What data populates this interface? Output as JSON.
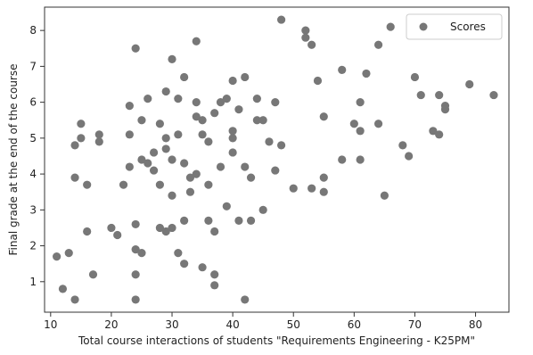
{
  "chart_data": {
    "type": "scatter",
    "xlabel": "Total course interactions of students \"Requirements Engineering - K25PM\"",
    "ylabel": "Final grade at the end of the course",
    "xlim": [
      9,
      85.5
    ],
    "ylim": [
      0.15,
      8.65
    ],
    "xticks": [
      10,
      20,
      30,
      40,
      50,
      60,
      70,
      80
    ],
    "yticks": [
      1,
      2,
      3,
      4,
      5,
      6,
      7,
      8
    ],
    "grid": false,
    "legend": "top-right",
    "series": [
      {
        "name": "Scores",
        "color": "#777777",
        "points": [
          [
            11,
            1.7
          ],
          [
            12,
            0.8
          ],
          [
            13,
            1.8
          ],
          [
            14,
            0.5
          ],
          [
            14,
            4.8
          ],
          [
            14,
            3.9
          ],
          [
            15,
            5.4
          ],
          [
            15,
            5.0
          ],
          [
            16,
            2.4
          ],
          [
            16,
            3.7
          ],
          [
            17,
            1.2
          ],
          [
            18,
            5.1
          ],
          [
            18,
            4.9
          ],
          [
            20,
            2.5
          ],
          [
            21,
            2.3
          ],
          [
            22,
            3.7
          ],
          [
            23,
            5.9
          ],
          [
            23,
            5.1
          ],
          [
            23,
            4.2
          ],
          [
            24,
            7.5
          ],
          [
            24,
            1.9
          ],
          [
            24,
            1.2
          ],
          [
            24,
            0.5
          ],
          [
            24,
            2.6
          ],
          [
            25,
            1.8
          ],
          [
            25,
            4.4
          ],
          [
            25,
            5.5
          ],
          [
            26,
            6.1
          ],
          [
            26,
            4.3
          ],
          [
            27,
            4.6
          ],
          [
            27,
            4.1
          ],
          [
            28,
            2.5
          ],
          [
            28,
            3.7
          ],
          [
            28,
            5.4
          ],
          [
            29,
            4.7
          ],
          [
            29,
            6.3
          ],
          [
            29,
            2.4
          ],
          [
            29,
            5.0
          ],
          [
            30,
            7.2
          ],
          [
            30,
            3.4
          ],
          [
            30,
            4.4
          ],
          [
            30,
            2.5
          ],
          [
            31,
            1.8
          ],
          [
            31,
            5.1
          ],
          [
            31,
            6.1
          ],
          [
            32,
            1.5
          ],
          [
            32,
            4.3
          ],
          [
            32,
            6.7
          ],
          [
            32,
            2.7
          ],
          [
            33,
            3.5
          ],
          [
            33,
            3.9
          ],
          [
            34,
            5.6
          ],
          [
            34,
            6.0
          ],
          [
            34,
            7.7
          ],
          [
            34,
            4.0
          ],
          [
            35,
            1.4
          ],
          [
            35,
            5.5
          ],
          [
            35,
            5.1
          ],
          [
            36,
            4.9
          ],
          [
            36,
            3.7
          ],
          [
            36,
            2.7
          ],
          [
            37,
            1.2
          ],
          [
            37,
            0.9
          ],
          [
            37,
            5.7
          ],
          [
            37,
            2.4
          ],
          [
            38,
            4.2
          ],
          [
            38,
            6.0
          ],
          [
            39,
            6.1
          ],
          [
            39,
            3.1
          ],
          [
            40,
            5.2
          ],
          [
            40,
            5.0
          ],
          [
            40,
            4.6
          ],
          [
            40,
            6.6
          ],
          [
            41,
            2.7
          ],
          [
            41,
            5.8
          ],
          [
            42,
            0.5
          ],
          [
            42,
            6.7
          ],
          [
            42,
            4.2
          ],
          [
            43,
            2.7
          ],
          [
            43,
            3.9
          ],
          [
            44,
            6.1
          ],
          [
            44,
            5.5
          ],
          [
            45,
            3.0
          ],
          [
            45,
            5.5
          ],
          [
            46,
            4.9
          ],
          [
            47,
            4.1
          ],
          [
            47,
            6.0
          ],
          [
            48,
            8.3
          ],
          [
            48,
            4.8
          ],
          [
            50,
            3.6
          ],
          [
            52,
            8.0
          ],
          [
            52,
            7.8
          ],
          [
            53,
            7.6
          ],
          [
            53,
            3.6
          ],
          [
            54,
            6.6
          ],
          [
            55,
            5.6
          ],
          [
            55,
            3.9
          ],
          [
            55,
            3.5
          ],
          [
            58,
            6.9
          ],
          [
            58,
            4.4
          ],
          [
            60,
            5.4
          ],
          [
            61,
            5.2
          ],
          [
            61,
            4.4
          ],
          [
            61,
            6.0
          ],
          [
            62,
            6.8
          ],
          [
            64,
            7.6
          ],
          [
            64,
            5.4
          ],
          [
            65,
            3.4
          ],
          [
            66,
            8.1
          ],
          [
            68,
            4.8
          ],
          [
            69,
            4.5
          ],
          [
            70,
            6.7
          ],
          [
            71,
            6.2
          ],
          [
            73,
            5.2
          ],
          [
            74,
            5.1
          ],
          [
            74,
            6.2
          ],
          [
            75,
            5.9
          ],
          [
            75,
            5.8
          ],
          [
            79,
            6.5
          ],
          [
            83,
            6.2
          ]
        ]
      }
    ]
  }
}
